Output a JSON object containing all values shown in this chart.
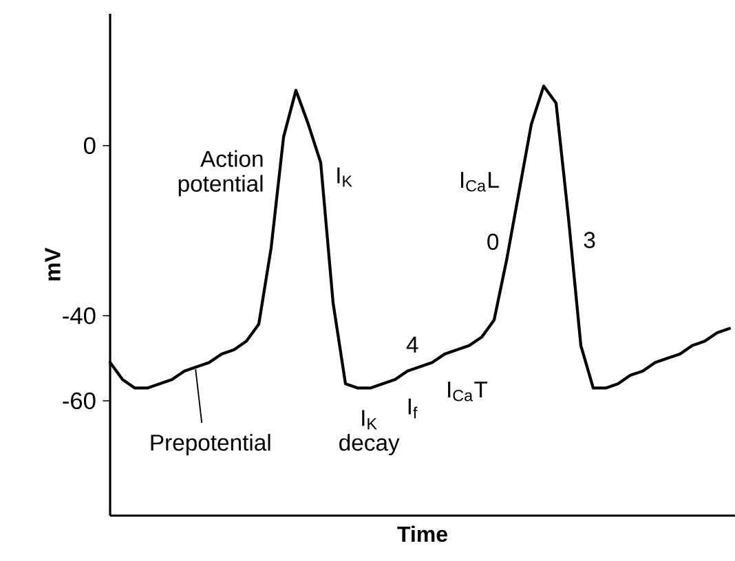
{
  "chart_data": {
    "type": "line",
    "xlabel": "Time",
    "ylabel": "mV",
    "categories": [
      null,
      null,
      null,
      null,
      null,
      null,
      null,
      null,
      null,
      null,
      null,
      null,
      null,
      null,
      null,
      null,
      null,
      null,
      null,
      null,
      null,
      null,
      null,
      null,
      null,
      null,
      null,
      null,
      null,
      null,
      null,
      null,
      null,
      null,
      null,
      null,
      null,
      null,
      null,
      null,
      null,
      null,
      null,
      null,
      null,
      null,
      null,
      null,
      null,
      null,
      null
    ],
    "series": [
      {
        "color": "#000000",
        "values": [
          -51,
          -55,
          -57,
          -57,
          -56,
          -55,
          -53,
          -52,
          -51,
          -49,
          -48,
          -46,
          -42,
          -24,
          2,
          13,
          5,
          -4,
          -37,
          -56,
          -57,
          -57,
          -56,
          -55,
          -53,
          -52,
          -51,
          -49,
          -48,
          -47,
          -45,
          -41,
          -27,
          -11,
          5,
          14,
          10,
          -17,
          -47,
          -57,
          -57,
          -56,
          -54,
          -53,
          -51,
          -50,
          -49,
          -47,
          -46,
          -44,
          -43
        ]
      }
    ],
    "ylim": [
      -87,
      31
    ],
    "yticks": [
      0,
      -40,
      -60
    ],
    "tick_labels": "y",
    "grid": false,
    "line_style": "solid",
    "annotations": [
      "Action potential",
      "I$_{K}$",
      "I$_{Ca}$L",
      "0",
      "3",
      "4",
      "I$_{Ca}$T",
      "I$_{f}$",
      "I$_{K}$ decay",
      "Prepotential"
    ]
  }
}
